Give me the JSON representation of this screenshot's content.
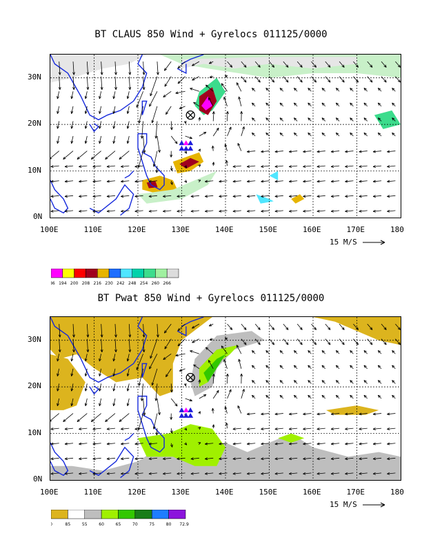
{
  "panel1": {
    "title": "BT CLAUS 850 Wind + Gyrelocs 011125/0000",
    "ref_vector": "15 M/S",
    "legend_labels": [
      "186",
      "194",
      "200",
      "208",
      "216",
      "230",
      "242",
      "248",
      "254",
      "260",
      "266"
    ],
    "legend_colors": [
      "#ff00ff",
      "#ffff00",
      "#ff0000",
      "#a0001e",
      "#e6b400",
      "#1e6eff",
      "#50e6ff",
      "#00d2aa",
      "#3cdc8c",
      "#a0f0a0",
      "#dcdcdc"
    ]
  },
  "panel2": {
    "title": "BT Pwat 850 Wind + Gyrelocs 011125/0000",
    "ref_vector": "15 M/S",
    "legend_labels": [
      "0",
      "85",
      "55",
      "60",
      "65",
      "70",
      "75",
      "80",
      "72.93"
    ],
    "legend_colors": [
      "#dcb41e",
      "#ffffff",
      "#bebebe",
      "#a0f000",
      "#32c800",
      "#197d19",
      "#1e7dff",
      "#8c14dc"
    ]
  },
  "axes": {
    "x_ticks": [
      "100E",
      "110E",
      "120E",
      "130E",
      "140E",
      "150E",
      "160E",
      "170E",
      "180"
    ],
    "y_ticks": [
      "30N",
      "20N",
      "10N",
      "0N"
    ]
  },
  "chart_data": [
    {
      "type": "heatmap",
      "title": "BT CLAUS 850 Wind + Gyrelocs 011125/0000",
      "xlim": [
        "100E",
        "180"
      ],
      "ylim": [
        "0N",
        "35N"
      ],
      "grid": true,
      "reference_vector": "15 M/S",
      "colorbar": [
        "186",
        "194",
        "200",
        "208",
        "216",
        "230",
        "242",
        "248",
        "254",
        "260",
        "266"
      ],
      "gyre_location": {
        "lon": 132,
        "lat": 22
      },
      "storm_markers": [
        {
          "lon": 130,
          "lat": 16
        },
        {
          "lon": 131,
          "lat": 16
        },
        {
          "lon": 132,
          "lat": 16
        }
      ]
    },
    {
      "type": "heatmap",
      "title": "BT Pwat 850 Wind + Gyrelocs 011125/0000",
      "xlim": [
        "100E",
        "180"
      ],
      "ylim": [
        "0N",
        "35N"
      ],
      "grid": true,
      "reference_vector": "15 M/S",
      "colorbar": [
        "0",
        "85",
        "55",
        "60",
        "65",
        "70",
        "75",
        "80",
        "72.93"
      ],
      "gyre_location": {
        "lon": 132,
        "lat": 22
      },
      "storm_markers": [
        {
          "lon": 130,
          "lat": 15
        },
        {
          "lon": 131,
          "lat": 15
        },
        {
          "lon": 132,
          "lat": 15
        }
      ]
    }
  ]
}
